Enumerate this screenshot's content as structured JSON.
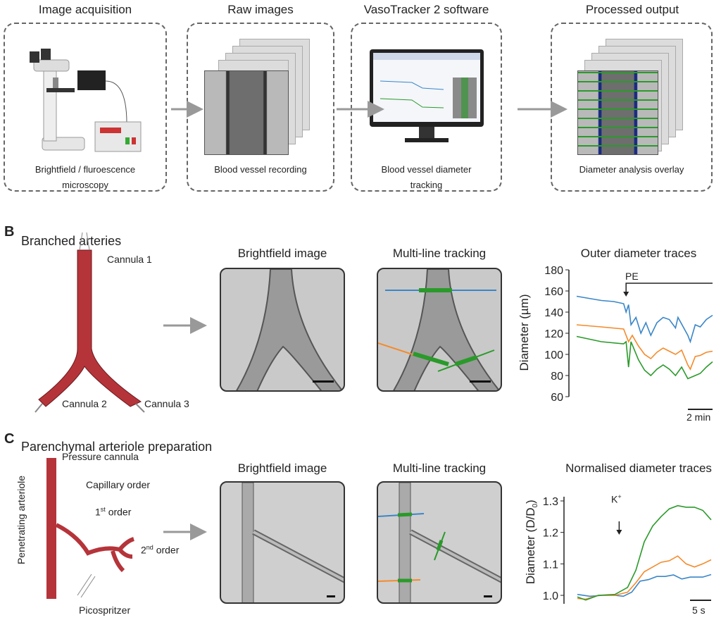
{
  "panelA": {
    "steps": [
      {
        "title": "Image acquisition",
        "caption": [
          "Brightfield / fluroescence",
          "microscopy"
        ]
      },
      {
        "title": "Raw images",
        "caption": [
          "Blood vessel recording"
        ]
      },
      {
        "title": "VasoTracker 2 software",
        "caption": [
          "Blood vessel diameter",
          "tracking"
        ]
      },
      {
        "title": "Processed output",
        "caption": [
          "Diameter analysis overlay"
        ]
      }
    ]
  },
  "panelB": {
    "letter": "B",
    "title": "Branched arteries",
    "labels": [
      "Cannula 1",
      "Cannula 2",
      "Cannula 3"
    ],
    "image1_title": "Brightfield image",
    "image2_title": "Multi-line tracking"
  },
  "panelC": {
    "letter": "C",
    "title": "Parenchymal arteriole preparation",
    "labels": {
      "pressure": "Pressure cannula",
      "capillary": "Capillary order",
      "first": "1",
      "first_sup": "st",
      "first_rest": " order",
      "second": "2",
      "second_sup": "nd",
      "second_rest": " order",
      "penetrating": "Penetrating arteriole",
      "pico": "Picospritzer"
    },
    "image1_title": "Brightfield image",
    "image2_title": "Multi-line tracking"
  },
  "colors": {
    "blue": "#3a86c8",
    "orange": "#f58a2a",
    "green": "#2a9a2a",
    "vessel": "#b5343a"
  },
  "chart_data": [
    {
      "type": "line",
      "title": "Outer diameter traces",
      "ylabel": "Diameter (µm)",
      "ylim": [
        60,
        180
      ],
      "yticks": [
        "180",
        "160",
        "140",
        "120",
        "100",
        "80",
        "60"
      ],
      "annotation": "PE",
      "annotation_x": 4,
      "scalebar": "2 min",
      "xlim": [
        0,
        11
      ],
      "series": [
        {
          "name": "blue",
          "x": [
            0,
            1,
            2,
            3,
            3.8,
            4,
            4.2,
            4.4,
            4.8,
            5.2,
            5.6,
            6,
            6.5,
            7,
            7.5,
            8,
            8.2,
            9,
            9.2,
            9.6,
            10,
            10.5,
            11
          ],
          "y": [
            155,
            153,
            151,
            150,
            148,
            140,
            147,
            128,
            135,
            120,
            130,
            118,
            130,
            135,
            133,
            125,
            135,
            118,
            112,
            128,
            126,
            133,
            137
          ]
        },
        {
          "name": "orange",
          "x": [
            0,
            2,
            3.8,
            4.2,
            4.5,
            5,
            5.5,
            6,
            6.5,
            7,
            7.5,
            8,
            8.5,
            9,
            9.2,
            9.6,
            10,
            10.5,
            11
          ],
          "y": [
            128,
            126,
            124,
            112,
            118,
            108,
            100,
            96,
            102,
            106,
            103,
            100,
            104,
            90,
            86,
            98,
            99,
            102,
            103
          ]
        },
        {
          "name": "green",
          "x": [
            0,
            2,
            3.8,
            4,
            4.2,
            4.4,
            5,
            5.5,
            6,
            6.5,
            7,
            7.5,
            8,
            8.5,
            9,
            9.6,
            10,
            10.5,
            11
          ],
          "y": [
            117,
            112,
            110,
            112,
            88,
            112,
            95,
            85,
            80,
            86,
            90,
            86,
            80,
            88,
            77,
            80,
            82,
            88,
            93
          ]
        }
      ]
    },
    {
      "type": "line",
      "title": "Normalised diameter traces",
      "ylabel": "Diameter (D/D",
      "ylabel_sub": "0",
      "ylabel_end": ")",
      "ylim": [
        0.975,
        1.31
      ],
      "yticks": [
        "1.3",
        "1.2",
        "1.1",
        "1.0"
      ],
      "annotation": "K",
      "annotation_sup": "+",
      "annotation_x": 10,
      "scalebar": "5 s",
      "xlim": [
        0,
        32
      ],
      "series": [
        {
          "name": "blue",
          "x": [
            0,
            3,
            6,
            9,
            11,
            13,
            15,
            17,
            19,
            21,
            23,
            25,
            27,
            30,
            32
          ],
          "y": [
            1.003,
            0.997,
            1.0,
            1.0,
            0.997,
            1.01,
            1.045,
            1.05,
            1.06,
            1.06,
            1.065,
            1.052,
            1.058,
            1.058,
            1.066
          ]
        },
        {
          "name": "orange",
          "x": [
            0,
            2,
            5,
            9,
            12,
            14,
            16,
            18,
            20,
            22,
            24,
            26,
            28,
            30,
            32
          ],
          "y": [
            0.99,
            0.988,
            1.0,
            1.0,
            1.01,
            1.04,
            1.075,
            1.09,
            1.105,
            1.11,
            1.125,
            1.1,
            1.09,
            1.1,
            1.113
          ]
        },
        {
          "name": "green",
          "x": [
            0,
            2,
            5,
            9,
            12,
            14,
            16,
            18,
            20,
            22,
            24,
            26,
            28,
            30,
            32
          ],
          "y": [
            0.995,
            0.985,
            1.0,
            1.003,
            1.025,
            1.08,
            1.17,
            1.22,
            1.25,
            1.275,
            1.285,
            1.28,
            1.28,
            1.27,
            1.24
          ]
        }
      ]
    }
  ]
}
